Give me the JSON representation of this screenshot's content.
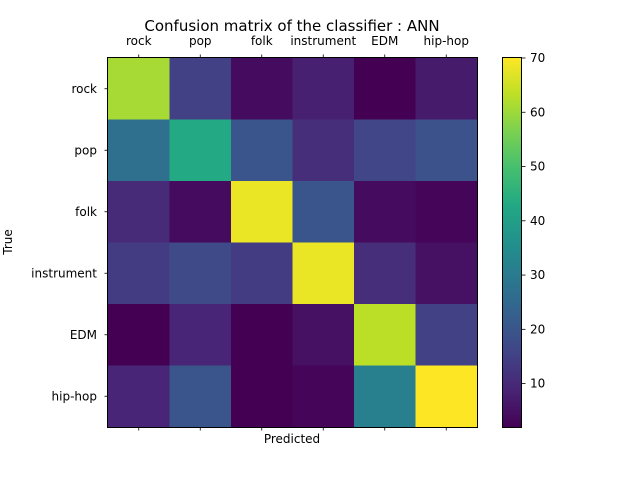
{
  "chart_data": {
    "type": "heatmap",
    "title": "Confusion matrix of the classifier : ANN",
    "xlabel": "Predicted",
    "ylabel": "True",
    "x_categories": [
      "rock",
      "pop",
      "folk",
      "instrument",
      "EDM",
      "hip-hop"
    ],
    "y_categories": [
      "rock",
      "pop",
      "folk",
      "instrument",
      "EDM",
      "hip-hop"
    ],
    "values": [
      [
        61,
        15,
        4,
        8,
        2,
        7
      ],
      [
        27,
        43,
        20,
        11,
        16,
        19
      ],
      [
        10,
        4,
        68,
        20,
        4,
        3
      ],
      [
        14,
        17,
        14,
        68,
        11,
        5
      ],
      [
        2,
        9,
        2,
        5,
        63,
        15
      ],
      [
        9,
        20,
        2,
        3,
        31,
        70
      ]
    ],
    "colormap": "viridis",
    "colorbar": {
      "range": [
        2,
        70
      ],
      "ticks": [
        10,
        20,
        30,
        40,
        50,
        60,
        70
      ]
    },
    "grid": false
  }
}
